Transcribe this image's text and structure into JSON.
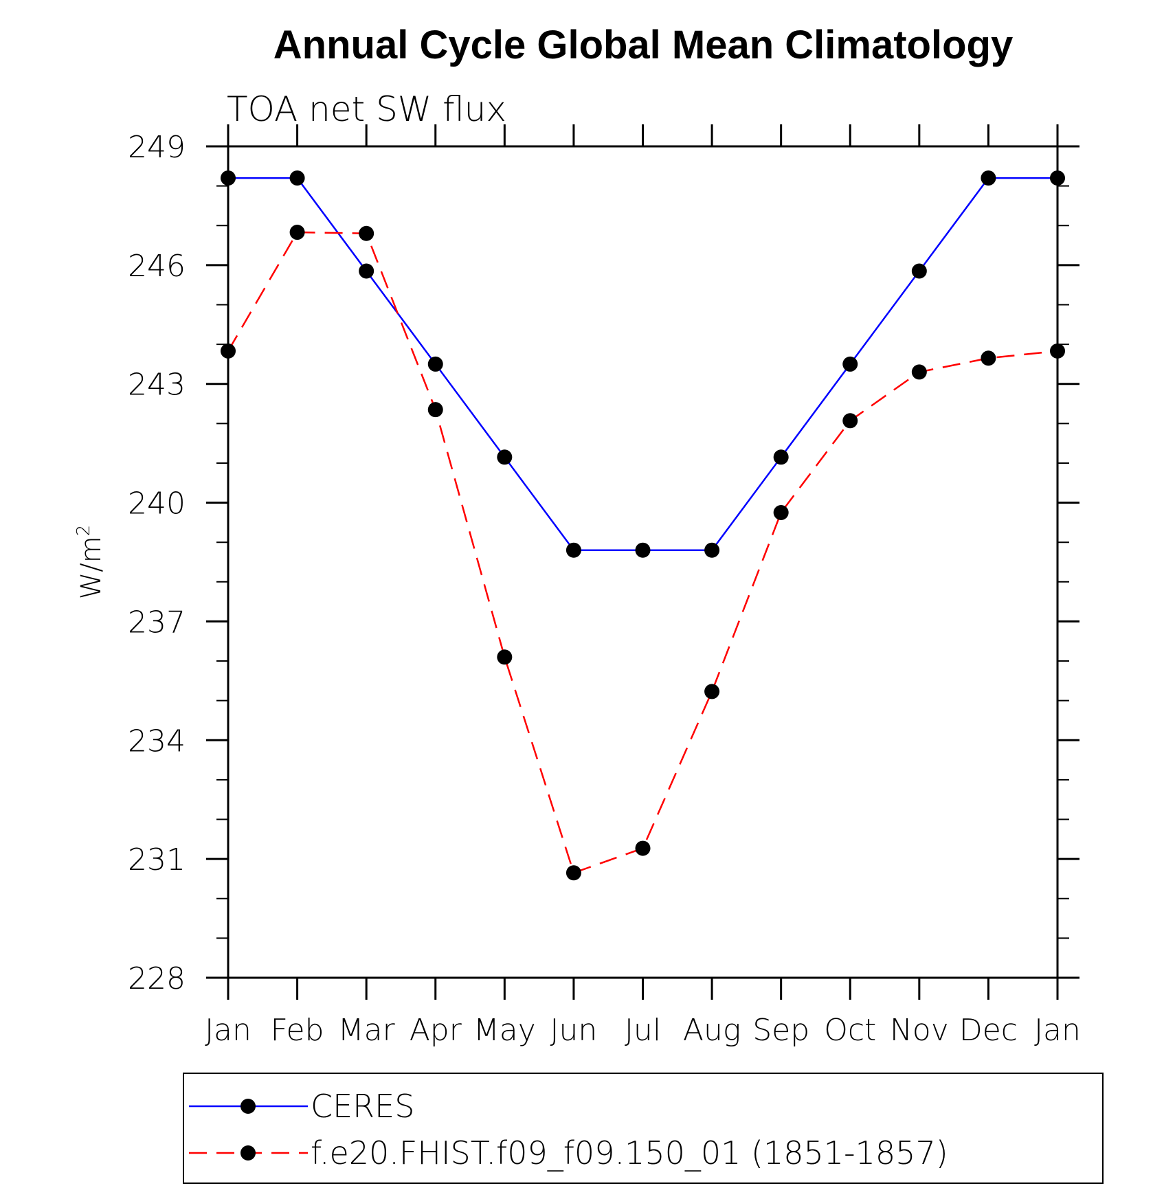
{
  "chart_data": {
    "type": "line",
    "title": "Annual Cycle Global Mean Climatology",
    "subtitle": "TOA net SW flux",
    "ylabel": "W/m",
    "ylabel_sup": "2",
    "xlabel": "",
    "categories": [
      "Jan",
      "Feb",
      "Mar",
      "Apr",
      "May",
      "Jun",
      "Jul",
      "Aug",
      "Sep",
      "Oct",
      "Nov",
      "Dec",
      "Jan"
    ],
    "ylim": [
      228,
      249
    ],
    "yticks": [
      228,
      231,
      234,
      237,
      240,
      243,
      246,
      249
    ],
    "series": [
      {
        "name": "CERES",
        "color": "#0000ff",
        "dash": "solid",
        "values": [
          248.2,
          248.2,
          245.85,
          243.5,
          241.15,
          238.8,
          238.8,
          238.8,
          241.15,
          243.5,
          245.85,
          248.2,
          248.2
        ]
      },
      {
        "name": "f.e20.FHIST.f09_f09.150_01 (1851-1857)",
        "color": "#ff0000",
        "dash": "dashed",
        "values": [
          243.83,
          246.83,
          246.8,
          242.35,
          236.1,
          230.65,
          231.27,
          235.23,
          239.75,
          242.07,
          243.3,
          243.65,
          243.83
        ]
      }
    ],
    "legend": "bottom-left, below plot"
  }
}
